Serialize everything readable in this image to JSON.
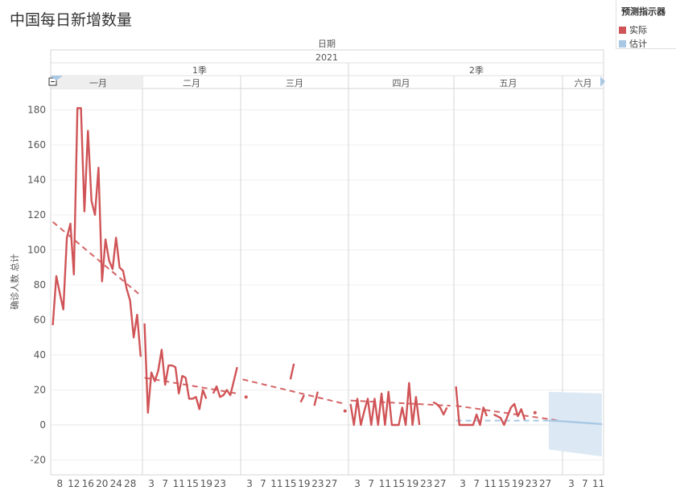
{
  "title": "中国每日新增数量",
  "legend": {
    "title": "预测指示器",
    "items": [
      {
        "label": "实际",
        "color": "#d05457"
      },
      {
        "label": "估计",
        "color": "#a9c8e4"
      }
    ]
  },
  "header": {
    "field": "日期",
    "year": "2021",
    "quarters": [
      "1季",
      "2季"
    ],
    "months": [
      "一月",
      "二月",
      "三月",
      "四月",
      "五月",
      "六月"
    ]
  },
  "chart_data": {
    "type": "line",
    "ylabel": "确诊人数 总计",
    "ylim": [
      -25,
      195
    ],
    "yticks": [
      -20,
      0,
      20,
      40,
      60,
      80,
      100,
      120,
      140,
      160,
      180
    ],
    "grid": true,
    "months": [
      {
        "name": "一月",
        "start_day": 6,
        "days": 31,
        "ticks": [
          8,
          12,
          16,
          20,
          24,
          28
        ]
      },
      {
        "name": "二月",
        "start_day": 1,
        "days": 28,
        "ticks": [
          3,
          7,
          11,
          15,
          19,
          23
        ]
      },
      {
        "name": "三月",
        "start_day": 1,
        "days": 31,
        "ticks": [
          3,
          7,
          11,
          15,
          19,
          23,
          27
        ]
      },
      {
        "name": "四月",
        "start_day": 1,
        "days": 30,
        "ticks": [
          3,
          7,
          11,
          15,
          19,
          23,
          27
        ]
      },
      {
        "name": "五月",
        "start_day": 1,
        "days": 31,
        "ticks": [
          3,
          7,
          11,
          15,
          19,
          23,
          27
        ]
      },
      {
        "name": "六月",
        "start_day": 1,
        "days": 12,
        "ticks": [
          3,
          7,
          11
        ]
      }
    ],
    "series": [
      {
        "name": "实际",
        "color": "#d05457",
        "segments": [
          [
            [
              "1-6",
              57
            ],
            [
              "1-7",
              85
            ],
            [
              "1-8",
              75
            ],
            [
              "1-9",
              66
            ],
            [
              "1-10",
              107
            ],
            [
              "1-11",
              115
            ],
            [
              "1-12",
              86
            ],
            [
              "1-13",
              181
            ],
            [
              "1-14",
              181
            ],
            [
              "1-15",
              122
            ],
            [
              "1-16",
              168
            ],
            [
              "1-17",
              128
            ],
            [
              "1-18",
              120
            ],
            [
              "1-19",
              147
            ],
            [
              "1-20",
              82
            ],
            [
              "1-21",
              106
            ],
            [
              "1-22",
              94
            ],
            [
              "1-23",
              89
            ],
            [
              "1-24",
              107
            ],
            [
              "1-25",
              90
            ],
            [
              "1-26",
              88
            ],
            [
              "1-27",
              78
            ],
            [
              "1-28",
              71
            ],
            [
              "1-29",
              50
            ],
            [
              "1-30",
              63
            ],
            [
              "1-31",
              39
            ]
          ],
          [
            [
              "2-1",
              58
            ],
            [
              "2-2",
              7
            ],
            [
              "2-3",
              30
            ],
            [
              "2-4",
              25
            ],
            [
              "2-5",
              31
            ],
            [
              "2-6",
              43
            ],
            [
              "2-7",
              23
            ],
            [
              "2-8",
              34
            ],
            [
              "2-9",
              34
            ],
            [
              "2-10",
              33
            ],
            [
              "2-11",
              18
            ],
            [
              "2-12",
              28
            ],
            [
              "2-13",
              27
            ],
            [
              "2-14",
              15
            ],
            [
              "2-15",
              15
            ],
            [
              "2-16",
              16
            ],
            [
              "2-17",
              9
            ],
            [
              "2-18",
              20
            ],
            [
              "2-19",
              15
            ]
          ],
          [
            [
              "2-21",
              18
            ],
            [
              "2-22",
              22
            ],
            [
              "2-23",
              16
            ],
            [
              "2-24",
              17
            ],
            [
              "2-25",
              20
            ],
            [
              "2-26",
              17
            ],
            [
              "2-27",
              25
            ],
            [
              "2-28",
              33
            ]
          ],
          [
            [
              "3-15",
              26
            ],
            [
              "3-16",
              35
            ]
          ],
          [
            [
              "3-18",
              13
            ],
            [
              "3-19",
              17
            ]
          ],
          [
            [
              "3-22",
              11
            ],
            [
              "3-23",
              19
            ]
          ],
          [
            [
              "4-1",
              12
            ],
            [
              "4-2",
              0
            ],
            [
              "4-3",
              15
            ],
            [
              "4-4",
              0
            ],
            [
              "4-5",
              8
            ],
            [
              "4-6",
              15
            ],
            [
              "4-7",
              0
            ],
            [
              "4-8",
              15
            ],
            [
              "4-9",
              0
            ],
            [
              "4-10",
              18
            ],
            [
              "4-11",
              0
            ],
            [
              "4-12",
              19
            ],
            [
              "4-13",
              0
            ],
            [
              "4-14",
              0
            ],
            [
              "4-15",
              0
            ],
            [
              "4-16",
              10
            ],
            [
              "4-17",
              0
            ],
            [
              "4-18",
              24
            ],
            [
              "4-19",
              0
            ],
            [
              "4-20",
              16
            ],
            [
              "4-21",
              0
            ]
          ],
          [
            [
              "4-25",
              13
            ],
            [
              "4-26",
              12
            ],
            [
              "4-27",
              10
            ],
            [
              "4-28",
              6
            ],
            [
              "4-29",
              10
            ]
          ],
          [
            [
              "5-1",
              22
            ],
            [
              "5-2",
              0
            ],
            [
              "5-3",
              0
            ],
            [
              "5-4",
              0
            ],
            [
              "5-5",
              0
            ],
            [
              "5-6",
              0
            ],
            [
              "5-7",
              6
            ],
            [
              "5-8",
              0
            ],
            [
              "5-9",
              10
            ],
            [
              "5-10",
              5
            ]
          ],
          [
            [
              "5-12",
              6
            ],
            [
              "5-13",
              5
            ],
            [
              "5-14",
              4
            ],
            [
              "5-15",
              0
            ],
            [
              "5-16",
              5
            ],
            [
              "5-17",
              10
            ],
            [
              "5-18",
              12
            ],
            [
              "5-19",
              5
            ],
            [
              "5-20",
              9
            ],
            [
              "5-21",
              3
            ]
          ]
        ],
        "points": [
          [
            "3-2",
            16
          ],
          [
            "3-31",
            8
          ],
          [
            "5-24",
            7
          ]
        ]
      },
      {
        "name": "估计",
        "color": "#a9c8e4",
        "values": [
          [
            "5-28",
            2.5
          ],
          [
            "6-1",
            2
          ],
          [
            "6-4",
            1.6
          ],
          [
            "6-7",
            1.2
          ],
          [
            "6-10",
            0.8
          ],
          [
            "6-12",
            0.5
          ]
        ],
        "band_upper": [
          [
            "5-28",
            19
          ],
          [
            "6-12",
            18
          ]
        ],
        "band_lower": [
          [
            "5-28",
            -14
          ],
          [
            "6-12",
            -18
          ]
        ]
      }
    ],
    "trend_lines": [
      [
        [
          "1-6",
          116
        ],
        [
          "1-31",
          74
        ]
      ],
      [
        [
          "2-1",
          27
        ],
        [
          "2-28",
          18
        ]
      ],
      [
        [
          "3-1",
          26
        ],
        [
          "3-31",
          12
        ]
      ],
      [
        [
          "4-1",
          14
        ],
        [
          "4-30",
          11
        ]
      ],
      [
        [
          "5-1",
          11
        ],
        [
          "5-31",
          2.5
        ]
      ]
    ],
    "forecast_baseline": [
      [
        "5-1",
        2.5
      ],
      [
        "5-31",
        2.5
      ]
    ]
  }
}
